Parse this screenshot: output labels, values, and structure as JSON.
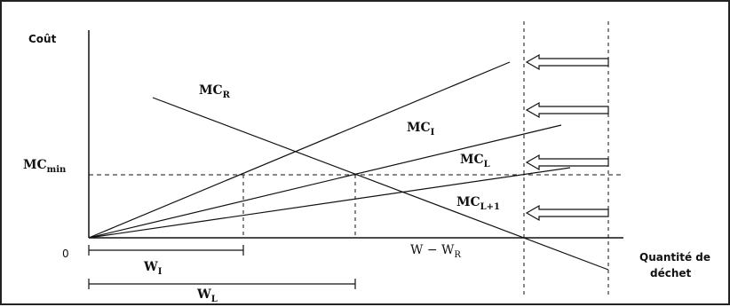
{
  "axes": {
    "y_label": "Coût",
    "x_label_line1": "Quantité de",
    "x_label_line2": "déchet",
    "origin": "0"
  },
  "curves": {
    "mc_r": {
      "base": "MC",
      "sub": "R"
    },
    "mc_i": {
      "base": "MC",
      "sub": "I"
    },
    "mc_l": {
      "base": "MC",
      "sub": "L"
    },
    "mc_l1": {
      "base": "MC",
      "sub": "L+1"
    }
  },
  "levels": {
    "mc_min": {
      "base": "MC",
      "sub": "min"
    }
  },
  "quantities": {
    "w_i": {
      "base": "W",
      "sub": "I"
    },
    "w_l": {
      "base": "W",
      "sub": "L"
    },
    "w_minus_wr": {
      "base": "W − W",
      "sub": "R"
    }
  }
}
